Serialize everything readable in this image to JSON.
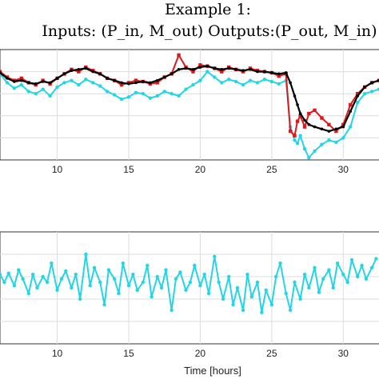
{
  "chart_data": [
    {
      "type": "line",
      "title_line1": "Example 1:",
      "title_line2": "Inputs: (P_in, M_out) Outputs:(P_out, M_in)",
      "xlabel": "",
      "xlim": [
        6,
        32.5
      ],
      "ylim": [
        0,
        1
      ],
      "xticks": [
        10,
        15,
        20,
        25,
        30
      ],
      "grid": true,
      "colors": {
        "cyan": "#22d6e6",
        "red": "#e0161b",
        "black": "#000000"
      },
      "series": [
        {
          "color": "cyan",
          "x": [
            6,
            6.5,
            7,
            7.5,
            8,
            8.5,
            9,
            9.5,
            10,
            10.5,
            11,
            11.5,
            12,
            12.5,
            13,
            13.5,
            14,
            14.5,
            15,
            15.5,
            16,
            16.5,
            17,
            17.5,
            18,
            18.5,
            19,
            19.5,
            20,
            20.5,
            21,
            21.5,
            22,
            22.5,
            23,
            23.5,
            24,
            24.5,
            25,
            25.5,
            26,
            26.3,
            26.6,
            26.8,
            27,
            27.3,
            27.6,
            28,
            28.5,
            29,
            29.5,
            30,
            30.5,
            31,
            31.5,
            32,
            32.5
          ],
          "y": [
            0.78,
            0.7,
            0.65,
            0.68,
            0.62,
            0.6,
            0.64,
            0.58,
            0.66,
            0.7,
            0.72,
            0.68,
            0.73,
            0.7,
            0.67,
            0.62,
            0.59,
            0.55,
            0.57,
            0.61,
            0.6,
            0.56,
            0.58,
            0.62,
            0.6,
            0.58,
            0.64,
            0.68,
            0.72,
            0.8,
            0.75,
            0.7,
            0.73,
            0.71,
            0.68,
            0.72,
            0.7,
            0.73,
            0.71,
            0.69,
            0.72,
            0.3,
            0.18,
            0.15,
            0.22,
            0.1,
            0.02,
            0.08,
            0.14,
            0.18,
            0.16,
            0.2,
            0.3,
            0.52,
            0.6,
            0.62,
            0.64
          ]
        },
        {
          "color": "red",
          "x": [
            6,
            6.5,
            7,
            7.5,
            8,
            8.5,
            9,
            9.5,
            10,
            10.5,
            11,
            11.5,
            12,
            12.5,
            13,
            13.5,
            14,
            14.5,
            15,
            15.5,
            16,
            16.5,
            17,
            17.5,
            18,
            18.5,
            19,
            19.5,
            20,
            20.5,
            21,
            21.5,
            22,
            22.5,
            23,
            23.5,
            24,
            24.5,
            25,
            25.5,
            26,
            26.3,
            26.6,
            26.8,
            27,
            27.3,
            27.6,
            28,
            28.5,
            29,
            29.5,
            30,
            30.5,
            31,
            31.5,
            32,
            32.5
          ],
          "y": [
            0.8,
            0.75,
            0.72,
            0.74,
            0.7,
            0.68,
            0.72,
            0.69,
            0.74,
            0.78,
            0.82,
            0.8,
            0.84,
            0.81,
            0.78,
            0.74,
            0.72,
            0.68,
            0.7,
            0.72,
            0.71,
            0.69,
            0.7,
            0.75,
            0.78,
            0.95,
            0.84,
            0.8,
            0.86,
            0.85,
            0.83,
            0.8,
            0.84,
            0.82,
            0.8,
            0.83,
            0.81,
            0.8,
            0.79,
            0.76,
            0.78,
            0.26,
            0.22,
            0.35,
            0.4,
            0.3,
            0.42,
            0.45,
            0.38,
            0.32,
            0.26,
            0.32,
            0.5,
            0.6,
            0.66,
            0.7,
            0.72
          ]
        },
        {
          "color": "black",
          "x": [
            6,
            6.5,
            7,
            7.5,
            8,
            8.5,
            9,
            9.5,
            10,
            10.5,
            11,
            11.5,
            12,
            12.5,
            13,
            13.5,
            14,
            14.5,
            15,
            15.5,
            16,
            16.5,
            17,
            17.5,
            18,
            18.5,
            19,
            19.5,
            20,
            20.5,
            21,
            21.5,
            22,
            22.5,
            23,
            23.5,
            24,
            24.5,
            25,
            25.5,
            26,
            26.3,
            26.6,
            26.8,
            27,
            27.3,
            27.6,
            28,
            28.5,
            29,
            29.5,
            30,
            30.5,
            31,
            31.5,
            32,
            32.5
          ],
          "y": [
            0.79,
            0.74,
            0.71,
            0.72,
            0.7,
            0.69,
            0.71,
            0.7,
            0.74,
            0.78,
            0.81,
            0.82,
            0.83,
            0.8,
            0.78,
            0.74,
            0.72,
            0.7,
            0.69,
            0.7,
            0.71,
            0.7,
            0.72,
            0.75,
            0.78,
            0.82,
            0.83,
            0.82,
            0.84,
            0.85,
            0.83,
            0.82,
            0.83,
            0.82,
            0.81,
            0.82,
            0.8,
            0.8,
            0.79,
            0.78,
            0.79,
            0.7,
            0.58,
            0.5,
            0.42,
            0.36,
            0.32,
            0.3,
            0.28,
            0.26,
            0.28,
            0.3,
            0.44,
            0.58,
            0.66,
            0.7,
            0.72
          ]
        }
      ]
    },
    {
      "type": "line",
      "xlabel": "Time [hours]",
      "xlim": [
        6,
        32.5
      ],
      "ylim": [
        0,
        1
      ],
      "xticks": [
        10,
        15,
        20,
        25,
        30
      ],
      "grid": true,
      "series": [
        {
          "color": "cyan",
          "x": [
            6,
            6.3,
            6.6,
            7,
            7.3,
            7.6,
            8,
            8.3,
            8.6,
            9,
            9.3,
            9.6,
            10,
            10.3,
            10.6,
            11,
            11.3,
            11.6,
            12,
            12.3,
            12.6,
            13,
            13.3,
            13.6,
            14,
            14.3,
            14.6,
            15,
            15.3,
            15.6,
            16,
            16.3,
            16.6,
            17,
            17.3,
            17.6,
            18,
            18.3,
            18.6,
            19,
            19.3,
            19.6,
            20,
            20.3,
            20.6,
            21,
            21.3,
            21.6,
            22,
            22.3,
            22.6,
            23,
            23.3,
            23.6,
            24,
            24.3,
            24.6,
            25,
            25.3,
            25.6,
            26,
            26.3,
            26.6,
            27,
            27.3,
            27.6,
            28,
            28.3,
            28.6,
            29,
            29.3,
            29.6,
            30,
            30.3,
            30.6,
            31,
            31.3,
            31.6,
            32,
            32.3
          ],
          "y": [
            0.62,
            0.55,
            0.63,
            0.52,
            0.66,
            0.58,
            0.45,
            0.62,
            0.5,
            0.6,
            0.55,
            0.72,
            0.48,
            0.58,
            0.65,
            0.5,
            0.62,
            0.4,
            0.8,
            0.52,
            0.68,
            0.55,
            0.35,
            0.66,
            0.58,
            0.45,
            0.72,
            0.52,
            0.62,
            0.48,
            0.55,
            0.7,
            0.42,
            0.6,
            0.5,
            0.66,
            0.3,
            0.58,
            0.64,
            0.48,
            0.55,
            0.7,
            0.52,
            0.62,
            0.45,
            0.78,
            0.55,
            0.4,
            0.6,
            0.35,
            0.5,
            0.3,
            0.62,
            0.42,
            0.55,
            0.28,
            0.48,
            0.35,
            0.6,
            0.72,
            0.45,
            0.3,
            0.55,
            0.4,
            0.62,
            0.5,
            0.68,
            0.46,
            0.58,
            0.66,
            0.5,
            0.72,
            0.62,
            0.55,
            0.75,
            0.6,
            0.7,
            0.58,
            0.68,
            0.76
          ]
        }
      ]
    }
  ]
}
